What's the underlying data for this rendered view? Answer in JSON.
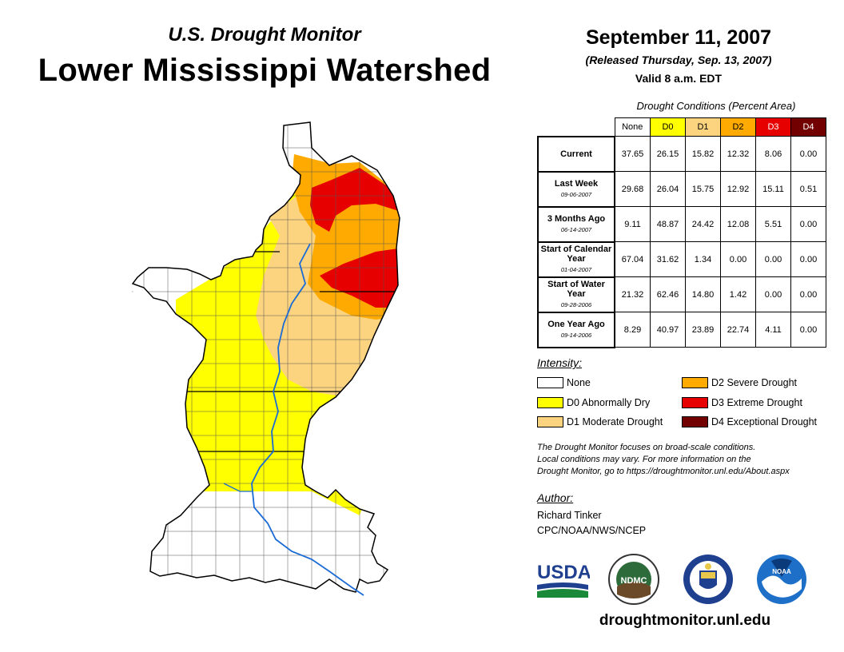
{
  "header": {
    "subtitle": "U.S. Drought Monitor",
    "region": "Lower Mississippi Watershed",
    "date": "September 11, 2007",
    "released": "(Released Thursday, Sep. 13, 2007)",
    "valid": "Valid 8 a.m. EDT"
  },
  "table": {
    "title": "Drought Conditions (Percent Area)",
    "columns": [
      "None",
      "D0",
      "D1",
      "D2",
      "D3",
      "D4"
    ],
    "rows": [
      {
        "label": "Current",
        "date": "",
        "values": [
          "37.65",
          "26.15",
          "15.82",
          "12.32",
          "8.06",
          "0.00"
        ]
      },
      {
        "label": "Last Week",
        "date": "09-06-2007",
        "values": [
          "29.68",
          "26.04",
          "15.75",
          "12.92",
          "15.11",
          "0.51"
        ]
      },
      {
        "label": "3 Months Ago",
        "date": "06-14-2007",
        "values": [
          "9.11",
          "48.87",
          "24.42",
          "12.08",
          "5.51",
          "0.00"
        ]
      },
      {
        "label": "Start of Calendar Year",
        "date": "01-04-2007",
        "values": [
          "67.04",
          "31.62",
          "1.34",
          "0.00",
          "0.00",
          "0.00"
        ]
      },
      {
        "label": "Start of Water Year",
        "date": "09-28-2006",
        "values": [
          "21.32",
          "62.46",
          "14.80",
          "1.42",
          "0.00",
          "0.00"
        ]
      },
      {
        "label": "One Year Ago",
        "date": "09-14-2006",
        "values": [
          "8.29",
          "40.97",
          "23.89",
          "22.74",
          "4.11",
          "0.00"
        ]
      }
    ]
  },
  "legend": {
    "title": "Intensity:",
    "items": [
      {
        "label": "None",
        "color": "#ffffff"
      },
      {
        "label": "D0 Abnormally Dry",
        "color": "#ffff00"
      },
      {
        "label": "D1 Moderate Drought",
        "color": "#fcd37f"
      },
      {
        "label": "D2 Severe Drought",
        "color": "#ffaa00"
      },
      {
        "label": "D3 Extreme Drought",
        "color": "#e60000"
      },
      {
        "label": "D4 Exceptional Drought",
        "color": "#730000"
      }
    ]
  },
  "note": {
    "line1": "The Drought Monitor focuses on broad-scale conditions.",
    "line2": "Local conditions may vary. For more information on the",
    "line3": "Drought Monitor, go to https://droughtmonitor.unl.edu/About.aspx"
  },
  "author": {
    "title": "Author:",
    "name": "Richard Tinker",
    "org": "CPC/NOAA/NWS/NCEP"
  },
  "logos": {
    "usda": "USDA",
    "ndmc": "NDMC",
    "noaa": "NOAA"
  },
  "footer": {
    "url": "droughtmonitor.unl.edu"
  }
}
